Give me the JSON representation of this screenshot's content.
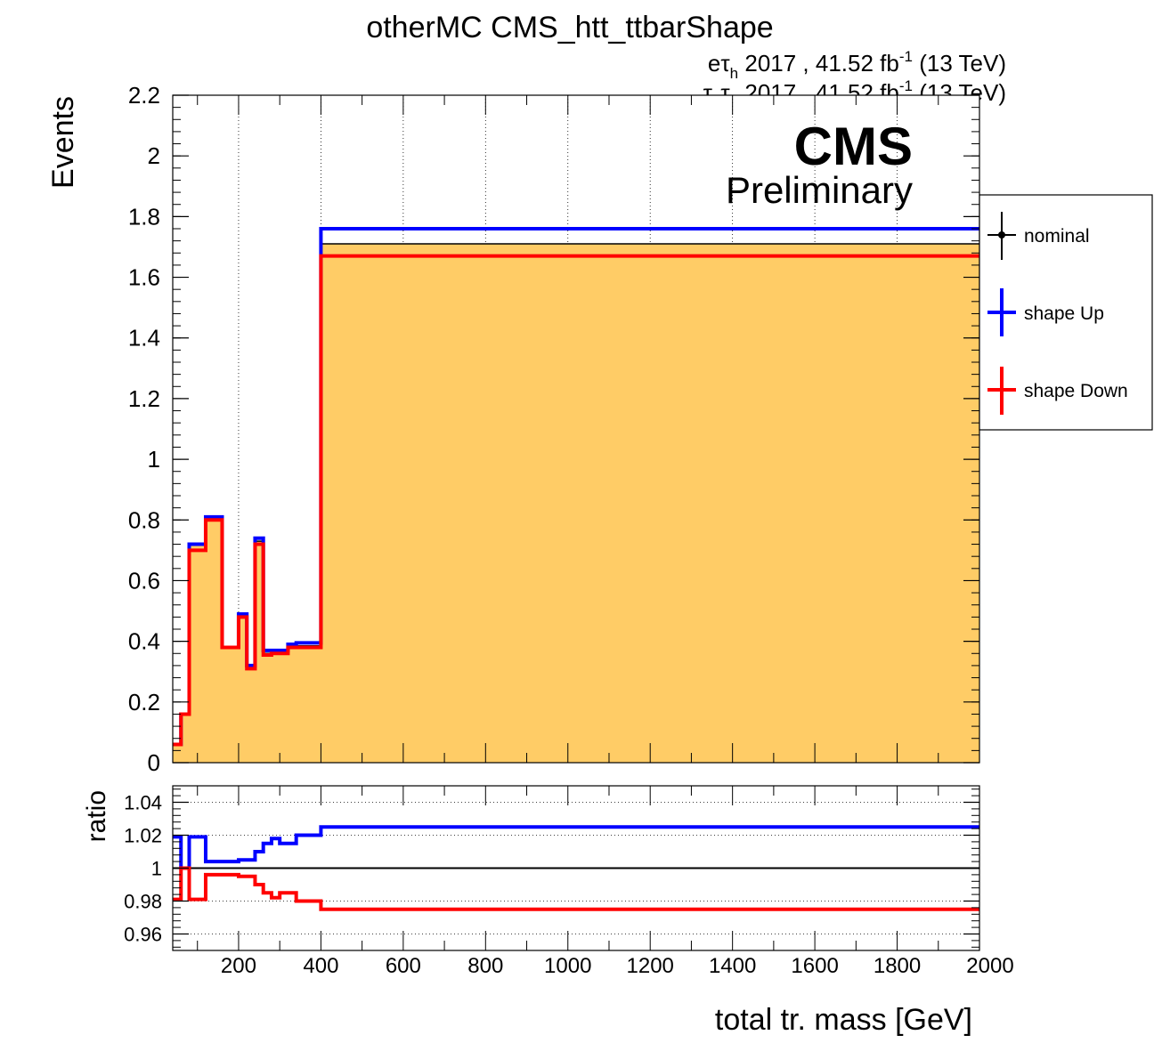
{
  "header": {
    "title": "otherMC CMS_htt_ttbarShape",
    "lumi_line1": {
      "prefix": "e",
      "tau": "τ",
      "sub": "h",
      "text": " 2017 , 41.52 fb",
      "sup": "-1",
      "suffix": " (13 TeV)"
    },
    "lumi_line2": {
      "tau": "τ",
      "sub": "h",
      "text": " 2017 , 41.52 fb",
      "sup": "-1",
      "suffix": " (13 TeV)"
    },
    "cms": "CMS",
    "preliminary": "Preliminary"
  },
  "legend": {
    "nominal": "nominal",
    "up": "shape Up",
    "down": "shape Down"
  },
  "colors": {
    "nominal_fill": "#ffcc66",
    "up": "#0000ff",
    "down": "#ff0000",
    "nominal_line": "#000000"
  },
  "chart_data": [
    {
      "type": "line",
      "panel": "main",
      "ylabel": "Events",
      "ylim": [
        0,
        2.2
      ],
      "xlim": [
        40,
        2000
      ],
      "y_ticks": [
        "0",
        "0.2",
        "0.4",
        "0.6",
        "0.8",
        "1",
        "1.2",
        "1.4",
        "1.6",
        "1.8",
        "2",
        "2.2"
      ],
      "grid": "vertical dotted",
      "legend_position": "right, outside plot",
      "bin_edges": [
        40,
        60,
        80,
        100,
        120,
        140,
        160,
        180,
        200,
        220,
        240,
        260,
        280,
        300,
        320,
        340,
        360,
        380,
        400,
        2000
      ],
      "series": [
        {
          "name": "nominal",
          "style": "filled",
          "values": [
            0.06,
            0.16,
            0.72,
            0.72,
            0.81,
            0.81,
            0.38,
            0.38,
            0.48,
            0.31,
            0.73,
            0.36,
            0.36,
            0.37,
            0.385,
            0.385,
            0.385,
            0.385,
            1.71
          ]
        },
        {
          "name": "shape Up",
          "values": [
            0.06,
            0.16,
            0.72,
            0.72,
            0.81,
            0.81,
            0.38,
            0.38,
            0.49,
            0.32,
            0.74,
            0.37,
            0.37,
            0.37,
            0.39,
            0.395,
            0.395,
            0.395,
            1.76
          ]
        },
        {
          "name": "shape Down",
          "values": [
            0.06,
            0.16,
            0.7,
            0.7,
            0.8,
            0.8,
            0.38,
            0.38,
            0.48,
            0.31,
            0.72,
            0.355,
            0.36,
            0.36,
            0.38,
            0.38,
            0.38,
            0.38,
            1.67
          ]
        }
      ]
    },
    {
      "type": "line",
      "panel": "ratio",
      "ylabel": "ratio",
      "xlabel": "total tr. mass [GeV]",
      "ylim": [
        0.95,
        1.05
      ],
      "xlim": [
        40,
        2000
      ],
      "y_ticks": [
        "0.96",
        "0.98",
        "1",
        "1.02",
        "1.04"
      ],
      "x_ticks": [
        "200",
        "400",
        "600",
        "800",
        "1000",
        "1200",
        "1400",
        "1600",
        "1800",
        "2000"
      ],
      "grid": "horizontal dotted",
      "bin_edges": [
        40,
        60,
        80,
        100,
        120,
        140,
        160,
        180,
        200,
        220,
        240,
        260,
        280,
        300,
        320,
        340,
        360,
        380,
        400,
        2000
      ],
      "series": [
        {
          "name": "shape Up",
          "values": [
            1.019,
            1.0,
            1.019,
            1.019,
            1.004,
            1.004,
            1.004,
            1.004,
            1.005,
            1.005,
            1.01,
            1.015,
            1.018,
            1.015,
            1.015,
            1.02,
            1.02,
            1.02,
            1.025
          ]
        },
        {
          "name": "shape Down",
          "values": [
            0.981,
            1.0,
            0.981,
            0.981,
            0.996,
            0.996,
            0.996,
            0.996,
            0.995,
            0.995,
            0.99,
            0.985,
            0.982,
            0.985,
            0.985,
            0.98,
            0.98,
            0.98,
            0.975
          ]
        }
      ]
    }
  ]
}
